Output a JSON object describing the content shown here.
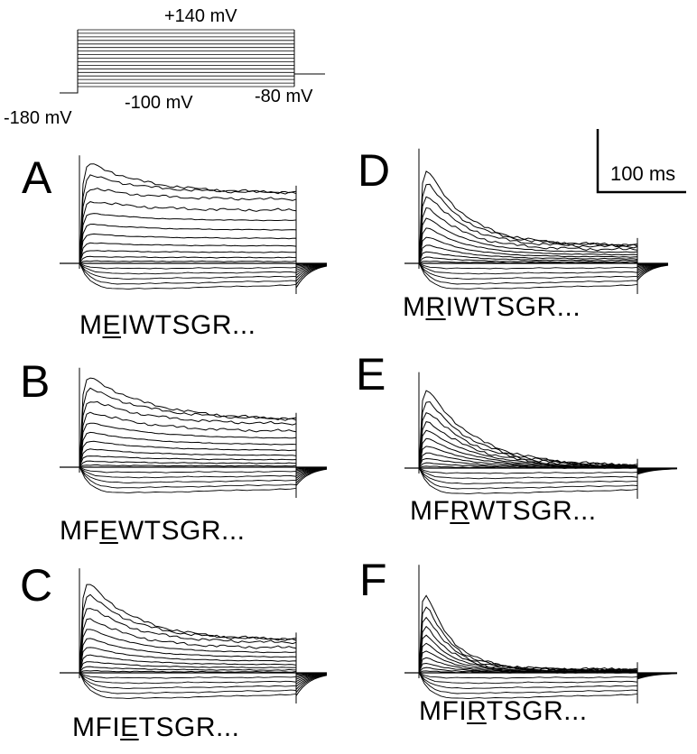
{
  "protocol": {
    "labels": {
      "top_voltage": "+140 mV",
      "hold_voltage": "-180 mV",
      "step_voltage": "-100 mV",
      "tail_voltage": "-80 mV"
    },
    "step_count": 17
  },
  "scale_bar": {
    "label": "100 ms"
  },
  "panels": [
    {
      "id": "A",
      "letter": "A",
      "seq_pre": "M",
      "seq_mut": "E",
      "seq_post": "IWTSGR...",
      "peak": 0.95,
      "steady": 0.62,
      "decay": 0.25,
      "tail": 0.8
    },
    {
      "id": "B",
      "letter": "B",
      "seq_pre": "MF",
      "seq_mut": "E",
      "seq_post": "WTSGR...",
      "peak": 0.95,
      "steady": 0.45,
      "decay": 0.28,
      "tail": 0.6
    },
    {
      "id": "C",
      "letter": "C",
      "seq_pre": "MFI",
      "seq_mut": "E",
      "seq_post": "TSGR...",
      "peak": 0.95,
      "steady": 0.3,
      "decay": 0.22,
      "tail": 0.75
    },
    {
      "id": "D",
      "letter": "D",
      "seq_pre": "M",
      "seq_mut": "R",
      "seq_post": "IWTSGR...",
      "peak": 0.95,
      "steady": 0.15,
      "decay": 0.18,
      "tail": 0.55
    },
    {
      "id": "E",
      "letter": "E",
      "seq_pre": "MF",
      "seq_mut": "R",
      "seq_post": "WTSGR...",
      "peak": 0.95,
      "steady": 0.02,
      "decay": 0.22,
      "tail": 0.2
    },
    {
      "id": "F",
      "letter": "F",
      "seq_pre": "MFI",
      "seq_mut": "R",
      "seq_post": "TSGR...",
      "peak": 0.95,
      "steady": 0.03,
      "decay": 0.12,
      "tail": 0.2
    }
  ]
}
